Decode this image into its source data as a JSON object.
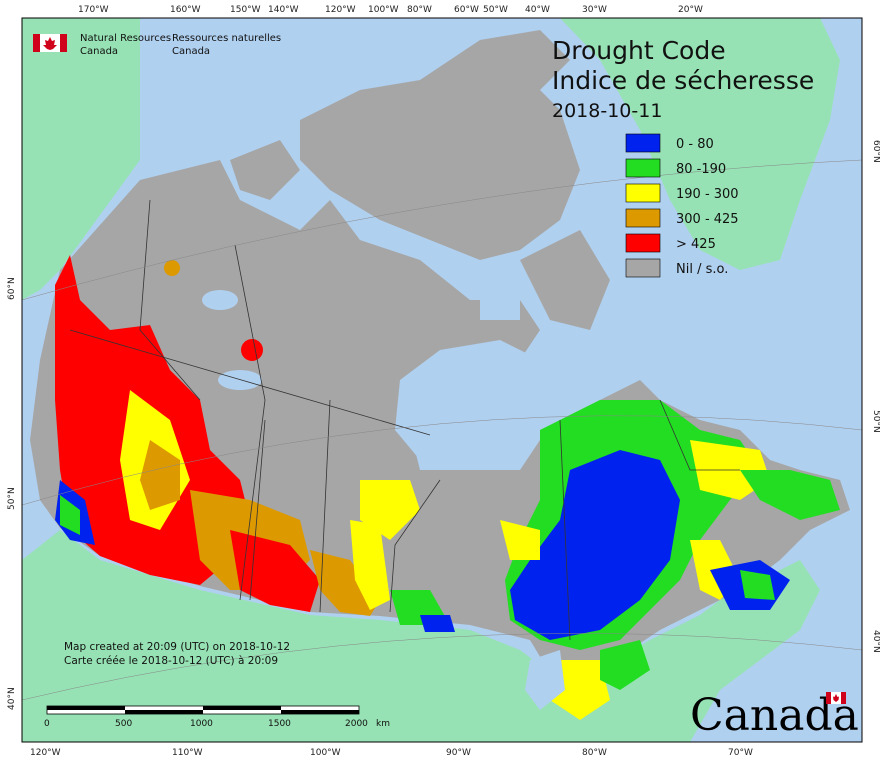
{
  "map": {
    "title_en": "Drought Code",
    "title_fr": "Indice de sécheresse",
    "date": "2018-10-11",
    "agency_en_1": "Natural Resources",
    "agency_en_2": "Canada",
    "agency_fr_1": "Ressources naturelles",
    "agency_fr_2": "Canada",
    "credit_en": "Map created at 20:09 (UTC) on 2018-10-12",
    "credit_fr": "Carte créée le 2018-10-12 (UTC) à 20:09",
    "wordmark": "Canada"
  },
  "legend": [
    {
      "label": "0 - 80",
      "color": "#0022ee"
    },
    {
      "label": "80 -190",
      "color": "#22dd22"
    },
    {
      "label": "190 - 300",
      "color": "#ffff00"
    },
    {
      "label": "300 - 425",
      "color": "#dd9900"
    },
    {
      "label": "> 425",
      "color": "#ff0000"
    },
    {
      "label": "Nil / s.o.",
      "color": "#a6a6a6"
    }
  ],
  "top_ticks": [
    "170°W",
    "160°W",
    "150°W",
    "140°W",
    "120°W",
    "100°W",
    "80°W",
    "60°W",
    "50°W",
    "40°W",
    "30°W",
    "20°W"
  ],
  "bottom_ticks": [
    "120°W",
    "110°W",
    "100°W",
    "90°W",
    "80°W",
    "70°W"
  ],
  "left_ticks": [
    "60°N",
    "50°N",
    "40°N"
  ],
  "right_ticks": [
    "60°N",
    "50°N",
    "40°N"
  ],
  "scale": {
    "labels": [
      "0",
      "500",
      "1000",
      "1500",
      "2000"
    ],
    "unit": "km"
  },
  "colors": {
    "water": "#b0d0f0",
    "foreign_land": "#96e2b4",
    "nodata": "#a6a6a6",
    "border": "#333333"
  }
}
